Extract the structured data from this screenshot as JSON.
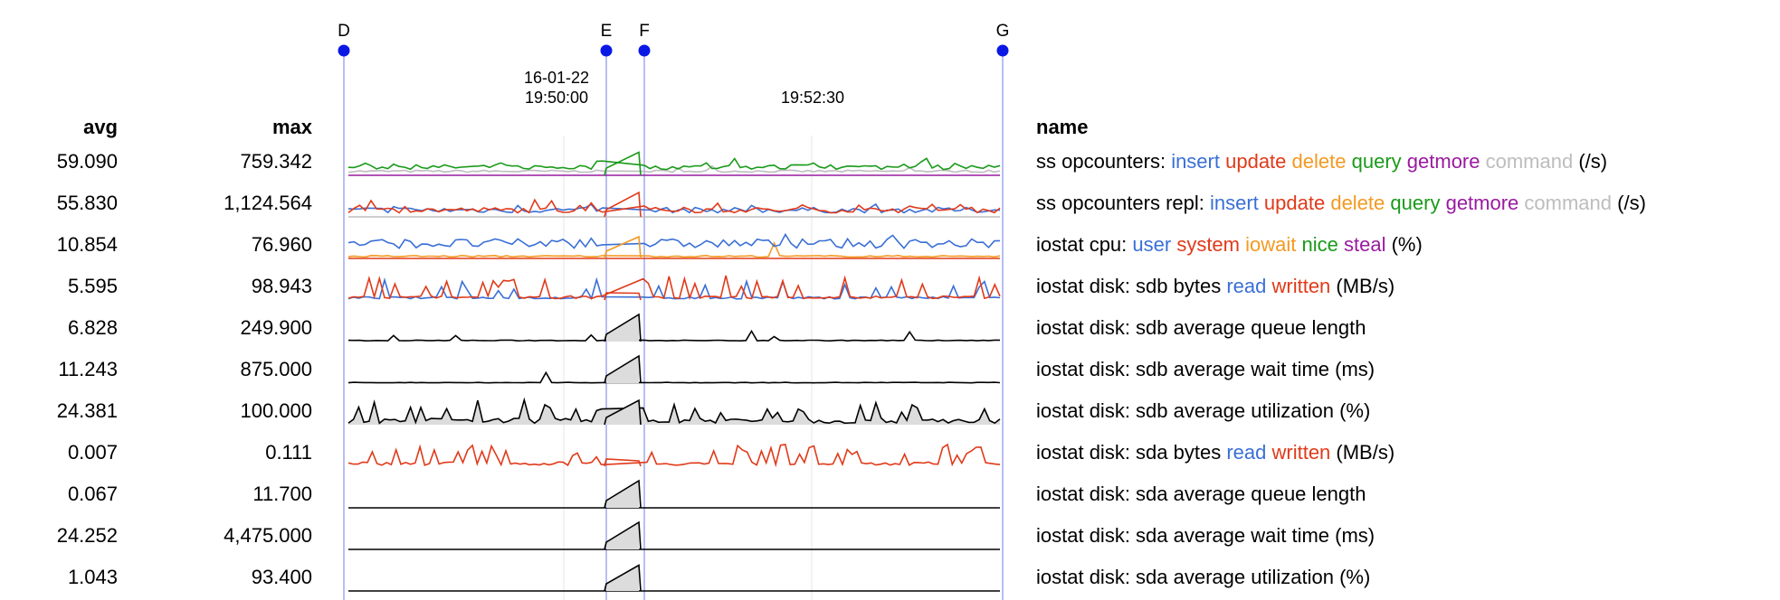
{
  "headers": {
    "avg": "avg",
    "max": "max",
    "name": "name"
  },
  "markers": [
    "D",
    "E",
    "F",
    "G"
  ],
  "time_ticks": [
    {
      "date": "16-01-22",
      "time": "19:50:00"
    },
    {
      "date": "",
      "time": "19:52:30"
    }
  ],
  "colors": {
    "marker": "#0a18e6",
    "marker_line": "#a0a8f0",
    "insert": "#3a6fd6",
    "update": "#e03a1a",
    "delete": "#f39a23",
    "query": "#1a9a1a",
    "getmore": "#9a1aa0",
    "command": "#bdbdbd",
    "black": "#000000",
    "fill": "#dcdcdc"
  },
  "rows": [
    {
      "avg": "59.090",
      "max": "759.342",
      "name_parts": [
        {
          "text": "ss opcounters: ",
          "color": "#000000"
        },
        {
          "text": "insert",
          "color": "#3a6fd6"
        },
        {
          "text": " ",
          "color": "#000000"
        },
        {
          "text": "update",
          "color": "#e03a1a"
        },
        {
          "text": " ",
          "color": "#000000"
        },
        {
          "text": "delete",
          "color": "#f39a23"
        },
        {
          "text": " ",
          "color": "#000000"
        },
        {
          "text": "query",
          "color": "#1a9a1a"
        },
        {
          "text": " ",
          "color": "#000000"
        },
        {
          "text": "getmore",
          "color": "#9a1aa0"
        },
        {
          "text": " ",
          "color": "#000000"
        },
        {
          "text": "command",
          "color": "#bdbdbd"
        },
        {
          "text": " (/s)",
          "color": "#000000"
        }
      ]
    },
    {
      "avg": "55.830",
      "max": "1,124.564",
      "name_parts": [
        {
          "text": "ss opcounters repl: ",
          "color": "#000000"
        },
        {
          "text": "insert",
          "color": "#3a6fd6"
        },
        {
          "text": " ",
          "color": "#000000"
        },
        {
          "text": "update",
          "color": "#e03a1a"
        },
        {
          "text": " ",
          "color": "#000000"
        },
        {
          "text": "delete",
          "color": "#f39a23"
        },
        {
          "text": " ",
          "color": "#000000"
        },
        {
          "text": "query",
          "color": "#1a9a1a"
        },
        {
          "text": " ",
          "color": "#000000"
        },
        {
          "text": "getmore",
          "color": "#9a1aa0"
        },
        {
          "text": " ",
          "color": "#000000"
        },
        {
          "text": "command",
          "color": "#bdbdbd"
        },
        {
          "text": " (/s)",
          "color": "#000000"
        }
      ]
    },
    {
      "avg": "10.854",
      "max": "76.960",
      "name_parts": [
        {
          "text": "iostat cpu: ",
          "color": "#000000"
        },
        {
          "text": "user",
          "color": "#3a6fd6"
        },
        {
          "text": " ",
          "color": "#000000"
        },
        {
          "text": "system",
          "color": "#e03a1a"
        },
        {
          "text": " ",
          "color": "#000000"
        },
        {
          "text": "iowait",
          "color": "#f39a23"
        },
        {
          "text": " ",
          "color": "#000000"
        },
        {
          "text": "nice",
          "color": "#1a9a1a"
        },
        {
          "text": " ",
          "color": "#000000"
        },
        {
          "text": "steal",
          "color": "#9a1aa0"
        },
        {
          "text": " (%)",
          "color": "#000000"
        }
      ]
    },
    {
      "avg": "5.595",
      "max": "98.943",
      "name_parts": [
        {
          "text": "iostat disk: sdb bytes ",
          "color": "#000000"
        },
        {
          "text": "read",
          "color": "#3a6fd6"
        },
        {
          "text": " ",
          "color": "#000000"
        },
        {
          "text": "written",
          "color": "#e03a1a"
        },
        {
          "text": " (MB/s)",
          "color": "#000000"
        }
      ]
    },
    {
      "avg": "6.828",
      "max": "249.900",
      "name_parts": [
        {
          "text": "iostat disk: sdb average queue length",
          "color": "#000000"
        }
      ]
    },
    {
      "avg": "11.243",
      "max": "875.000",
      "name_parts": [
        {
          "text": "iostat disk: sdb average wait time (ms)",
          "color": "#000000"
        }
      ]
    },
    {
      "avg": "24.381",
      "max": "100.000",
      "name_parts": [
        {
          "text": "iostat disk: sdb average utilization (%)",
          "color": "#000000"
        }
      ]
    },
    {
      "avg": "0.007",
      "max": "0.111",
      "name_parts": [
        {
          "text": "iostat disk: sda bytes ",
          "color": "#000000"
        },
        {
          "text": "read",
          "color": "#3a6fd6"
        },
        {
          "text": " ",
          "color": "#000000"
        },
        {
          "text": "written",
          "color": "#e03a1a"
        },
        {
          "text": " (MB/s)",
          "color": "#000000"
        }
      ]
    },
    {
      "avg": "0.067",
      "max": "11.700",
      "name_parts": [
        {
          "text": "iostat disk: sda average queue length",
          "color": "#000000"
        }
      ]
    },
    {
      "avg": "24.252",
      "max": "4,475.000",
      "name_parts": [
        {
          "text": "iostat disk: sda average wait time (ms)",
          "color": "#000000"
        }
      ]
    },
    {
      "avg": "1.043",
      "max": "93.400",
      "name_parts": [
        {
          "text": "iostat disk: sda average utilization (%)",
          "color": "#000000"
        }
      ]
    }
  ]
}
